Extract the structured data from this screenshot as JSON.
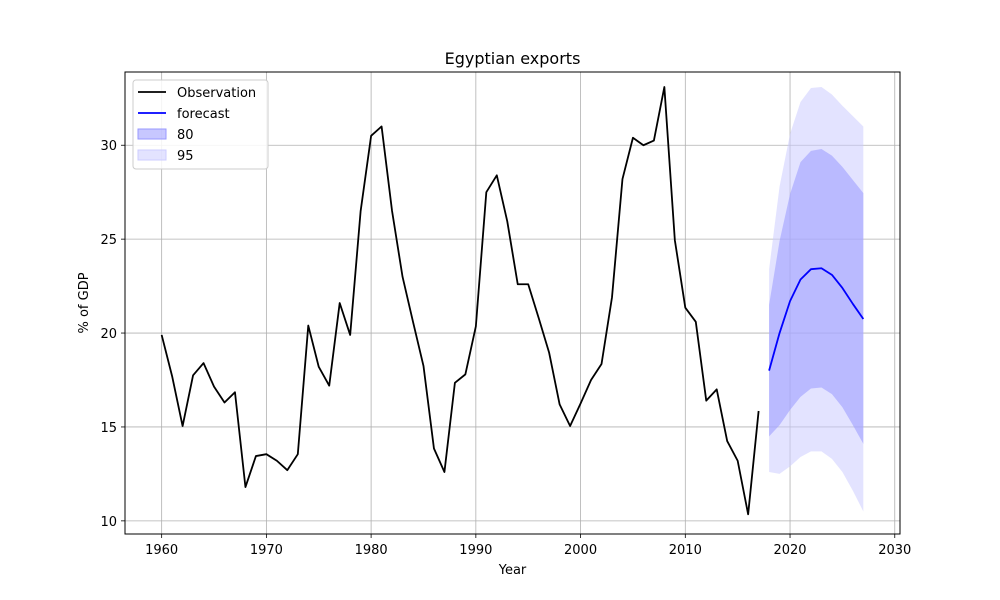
{
  "chart_data": {
    "type": "line",
    "title": "Egyptian exports",
    "xlabel": "Year",
    "ylabel": "% of GDP",
    "xlim": [
      1956.5,
      2030.5
    ],
    "ylim": [
      9.3,
      33.9
    ],
    "xticks": [
      1960,
      1970,
      1980,
      1990,
      2000,
      2010,
      2020,
      2030
    ],
    "yticks": [
      10,
      15,
      20,
      25,
      30
    ],
    "grid": true,
    "legend_position": "top-left",
    "series": [
      {
        "name": "Observation",
        "color": "#000000",
        "x": [
          1960,
          1961,
          1962,
          1963,
          1964,
          1965,
          1966,
          1967,
          1968,
          1969,
          1970,
          1971,
          1972,
          1973,
          1974,
          1975,
          1976,
          1977,
          1978,
          1979,
          1980,
          1981,
          1982,
          1983,
          1984,
          1985,
          1986,
          1987,
          1988,
          1989,
          1990,
          1991,
          1992,
          1993,
          1994,
          1995,
          1996,
          1997,
          1998,
          1999,
          2000,
          2001,
          2002,
          2003,
          2004,
          2005,
          2006,
          2007,
          2008,
          2009,
          2010,
          2011,
          2012,
          2013,
          2014,
          2015,
          2016,
          2017
        ],
        "y": [
          19.9,
          17.7,
          15.05,
          17.75,
          18.4,
          17.15,
          16.3,
          16.85,
          11.8,
          13.45,
          13.55,
          13.2,
          12.7,
          13.55,
          20.4,
          18.2,
          17.2,
          21.6,
          19.9,
          26.5,
          30.5,
          31.0,
          26.5,
          23.0,
          20.6,
          18.25,
          13.85,
          12.6,
          17.35,
          17.8,
          20.35,
          27.5,
          28.4,
          25.95,
          22.6,
          22.6,
          20.8,
          18.95,
          16.2,
          15.05,
          16.25,
          17.5,
          18.35,
          21.9,
          28.2,
          30.4,
          30.0,
          30.25,
          33.1,
          24.95,
          21.35,
          20.6,
          16.4,
          17.0,
          14.25,
          13.2,
          10.35,
          15.85
        ]
      },
      {
        "name": "forecast",
        "color": "#0000ff",
        "x": [
          2018,
          2019,
          2020,
          2021,
          2022,
          2023,
          2024,
          2025,
          2026,
          2027
        ],
        "y": [
          18.0,
          20.0,
          21.7,
          22.85,
          23.4,
          23.45,
          23.1,
          22.4,
          21.55,
          20.75
        ]
      }
    ],
    "intervals": [
      {
        "name": "95",
        "color": "#ccccff",
        "opacity": 0.55,
        "x": [
          2018,
          2019,
          2020,
          2021,
          2022,
          2023,
          2024,
          2025,
          2026,
          2027
        ],
        "lower": [
          12.6,
          12.5,
          12.9,
          13.4,
          13.7,
          13.7,
          13.3,
          12.6,
          11.6,
          10.5
        ],
        "upper": [
          23.4,
          27.8,
          30.6,
          32.3,
          33.05,
          33.1,
          32.7,
          32.1,
          31.55,
          31.0
        ]
      },
      {
        "name": "80",
        "color": "#9999ff",
        "opacity": 0.55,
        "x": [
          2018,
          2019,
          2020,
          2021,
          2022,
          2023,
          2024,
          2025,
          2026,
          2027
        ],
        "lower": [
          14.5,
          15.1,
          15.9,
          16.6,
          17.05,
          17.1,
          16.75,
          16.05,
          15.1,
          14.1
        ],
        "upper": [
          21.5,
          24.9,
          27.4,
          29.1,
          29.7,
          29.8,
          29.45,
          28.85,
          28.15,
          27.45
        ]
      }
    ],
    "legend": [
      {
        "label": "Observation",
        "kind": "line",
        "color": "#000000"
      },
      {
        "label": "forecast",
        "kind": "line",
        "color": "#0000ff"
      },
      {
        "label": "80",
        "kind": "patch",
        "color": "#9999ff",
        "opacity": 0.55
      },
      {
        "label": "95",
        "kind": "patch",
        "color": "#ccccff",
        "opacity": 0.55
      }
    ]
  }
}
